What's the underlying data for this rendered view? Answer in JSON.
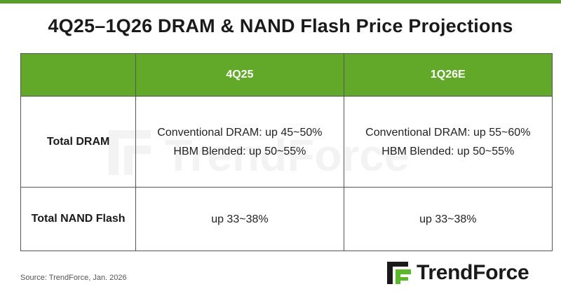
{
  "title": "4Q25–1Q26 DRAM & NAND Flash Price Projections",
  "table": {
    "headers": [
      "",
      "4Q25",
      "1Q26E"
    ],
    "rows": [
      {
        "label": "Total DRAM",
        "cells": [
          [
            "Conventional DRAM: up 45~50%",
            "HBM Blended: up 50~55%"
          ],
          [
            "Conventional DRAM: up 55~60%",
            "HBM Blended: up 50~55%"
          ]
        ]
      },
      {
        "label": "Total NAND Flash",
        "cells": [
          [
            "up 33~38%"
          ],
          [
            "up 33~38%"
          ]
        ]
      }
    ]
  },
  "source": "Source: TrendForce, Jan. 2026",
  "logo": {
    "text": "TrendForce",
    "icon": "trendforce-logo-icon"
  },
  "watermark": {
    "text": "TrendForce"
  },
  "colors": {
    "header_green": "#62a92a",
    "top_bar": "#5a9e2a",
    "logo_green": "#5ab82a"
  }
}
